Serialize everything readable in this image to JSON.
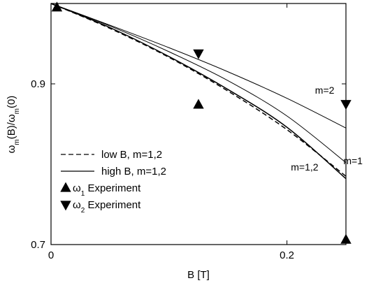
{
  "chart_data": {
    "type": "line",
    "xlabel": "B [T]",
    "ylabel": "ω_m(B)/ω_m(0)",
    "xlim": [
      0,
      0.25
    ],
    "ylim": [
      0.7,
      1.0
    ],
    "x_ticks": [
      0,
      0.2
    ],
    "y_ticks": [
      0.7,
      0.9
    ],
    "x_tick_labels": [
      "0",
      "0.2"
    ],
    "y_tick_labels": [
      "0.7",
      "0.9"
    ],
    "grid": false,
    "legend_position": "left-center",
    "legend": [
      {
        "label": "low B, m=1,2",
        "style": "dashed-line",
        "ref": "low"
      },
      {
        "label": "high B, m=1,2",
        "style": "solid-line",
        "ref": "high"
      },
      {
        "label": "ω₁ Experiment",
        "style": "triangle-up",
        "ref": "w1"
      },
      {
        "label": "ω₂ Experiment",
        "style": "triangle-down",
        "ref": "w2"
      }
    ],
    "series": [
      {
        "name": "low B, m=1,2",
        "style": "dashed",
        "x": [
          0,
          0.05,
          0.1,
          0.15,
          0.2,
          0.25
        ],
        "y": [
          1.0,
          0.969,
          0.933,
          0.891,
          0.843,
          0.785
        ]
      },
      {
        "name": "high B, m=1,2",
        "style": "solid-thin",
        "id": "high-m12",
        "x": [
          0,
          0.05,
          0.1,
          0.15,
          0.2,
          0.25
        ],
        "y": [
          1.0,
          0.97,
          0.934,
          0.893,
          0.846,
          0.782
        ]
      },
      {
        "name": "",
        "style": "solid",
        "id": "high-m1",
        "x": [
          0,
          0.05,
          0.1,
          0.15,
          0.2,
          0.25
        ],
        "y": [
          1.0,
          0.972,
          0.94,
          0.904,
          0.86,
          0.802
        ]
      },
      {
        "name": "",
        "style": "solid",
        "id": "high-m2",
        "x": [
          0,
          0.05,
          0.1,
          0.15,
          0.2,
          0.25
        ],
        "y": [
          1.0,
          0.973,
          0.945,
          0.915,
          0.882,
          0.845
        ]
      },
      {
        "name": "ω₁ Experiment",
        "style": "triangle-up",
        "x": [
          0.005,
          0.125,
          0.25
        ],
        "y": [
          0.995,
          0.874,
          0.706
        ]
      },
      {
        "name": "ω₂ Experiment",
        "style": "triangle-down",
        "x": [
          0.125,
          0.25
        ],
        "y": [
          0.938,
          0.875
        ]
      }
    ],
    "annotations": [
      {
        "text": "m=2",
        "x": 0.232,
        "y": 0.888
      },
      {
        "text": "m=1,2",
        "x": 0.215,
        "y": 0.792
      },
      {
        "text": "m=1",
        "x": 0.256,
        "y": 0.8
      }
    ]
  }
}
